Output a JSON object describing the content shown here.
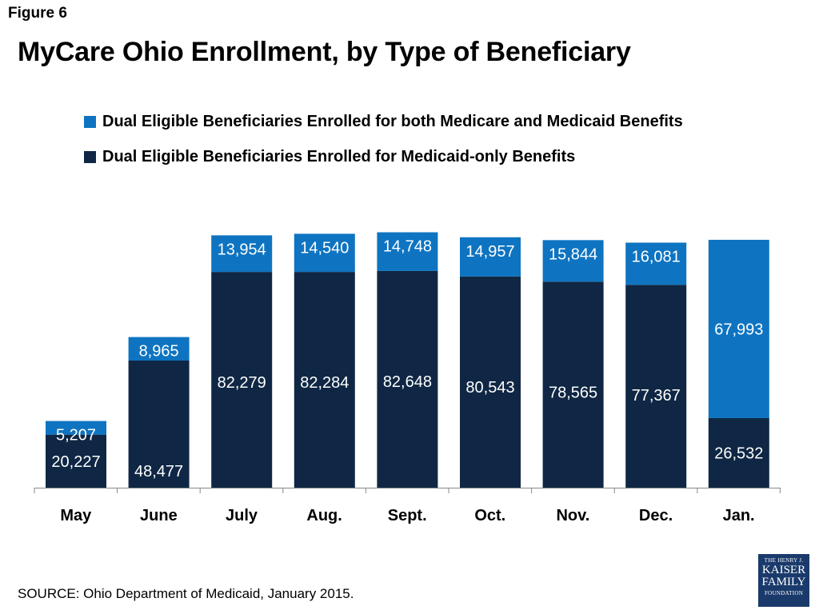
{
  "figure_label": "Figure 6",
  "title": "MyCare Ohio Enrollment, by Type of Beneficiary",
  "source": "SOURCE: Ohio Department of Medicaid, January 2015.",
  "logo": {
    "line1": "THE HENRY J.",
    "line2": "KAISER",
    "line3": "FAMILY",
    "line4": "FOUNDATION"
  },
  "colors": {
    "medicaid_only": "#0f2744",
    "both": "#0e74c1"
  },
  "chart_data": {
    "type": "bar",
    "stacked": true,
    "categories": [
      "May",
      "June",
      "July",
      "Aug.",
      "Sept.",
      "Oct.",
      "Nov.",
      "Dec.",
      "Jan."
    ],
    "series": [
      {
        "name": "Dual Eligible Beneficiaries Enrolled for Medicaid-only Benefits",
        "values": [
          20227,
          48477,
          82279,
          82284,
          82648,
          80543,
          78565,
          77367,
          26532
        ],
        "color": "#0f2744"
      },
      {
        "name": "Dual Eligible Beneficiaries Enrolled for both Medicare and Medicaid Benefits",
        "values": [
          5207,
          8965,
          13954,
          14540,
          14748,
          14957,
          15844,
          16081,
          67993
        ],
        "color": "#0e74c1"
      }
    ],
    "ylim": [
      0,
      100000
    ],
    "legend_position": "top",
    "grid": false
  }
}
